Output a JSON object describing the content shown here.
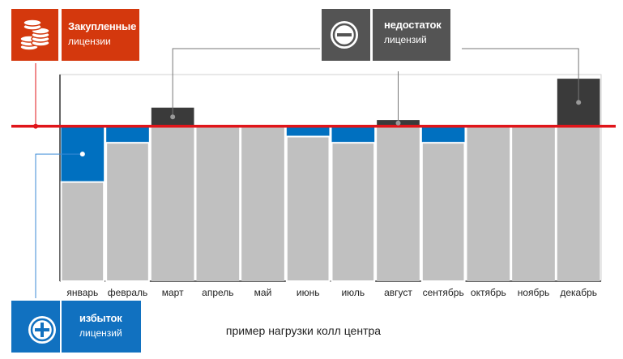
{
  "colors": {
    "bar": "#c0c0c0",
    "surplus": "#0070c0",
    "shortage": "#3a3a3a",
    "license_line": "#e0151a",
    "purchased_tile": "#d4380d",
    "shortage_tile": "#545454",
    "surplus_tile": "#1171c0"
  },
  "labels": {
    "purchased_title": "Закупленные",
    "purchased_sub": "лицензии",
    "shortage_title": "недостаток",
    "shortage_sub": "лицензий",
    "surplus_title": "избыток",
    "surplus_sub": "лицензий",
    "caption": "пример нагрузки колл центра"
  },
  "icons": {
    "purchased": "coins-icon",
    "shortage": "minus-circle-icon",
    "surplus": "plus-circle-icon"
  },
  "chart_data": {
    "type": "bar",
    "title": "",
    "xlabel": "",
    "ylabel": "",
    "ylim": [
      0,
      100
    ],
    "grid": false,
    "legend": "none",
    "license_level": 75,
    "categories": [
      "январь",
      "февраль",
      "март",
      "апрель",
      "май",
      "июнь",
      "июль",
      "август",
      "сентябрь",
      "октябрь",
      "ноябрь",
      "декабрь"
    ],
    "values": [
      48,
      67,
      84,
      75,
      75,
      70,
      67,
      78,
      67,
      75,
      75,
      98
    ]
  }
}
